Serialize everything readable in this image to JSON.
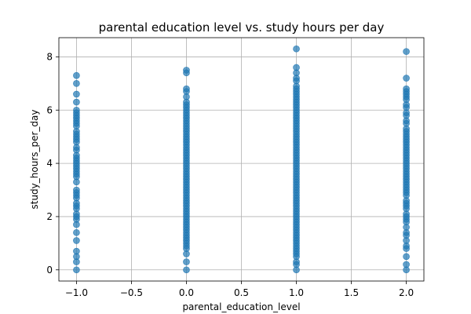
{
  "chart_data": {
    "type": "scatter",
    "title": "parental education level vs. study hours per day",
    "xlabel": "parental_education_level",
    "ylabel": "study_hours_per_day",
    "xlim": [
      -1.16,
      2.16
    ],
    "ylim": [
      -0.42,
      8.72
    ],
    "x_ticks": [
      -1.0,
      -0.5,
      0.0,
      0.5,
      1.0,
      1.5,
      2.0
    ],
    "x_tick_labels": [
      "−1.0",
      "−0.5",
      "0.0",
      "0.5",
      "1.0",
      "1.5",
      "2.0"
    ],
    "y_ticks": [
      0,
      2,
      4,
      6,
      8
    ],
    "y_tick_labels": [
      "0",
      "2",
      "4",
      "6",
      "8"
    ],
    "grid": true,
    "marker_color": "#1f77b4",
    "marker_alpha": 0.7,
    "series": [
      {
        "x": -1.0,
        "y": [
          0.0,
          0.3,
          0.5,
          0.7,
          1.1,
          1.4,
          1.7,
          1.9,
          2.0,
          2.1,
          2.3,
          2.4,
          2.5,
          2.7,
          2.8,
          2.9,
          3.0,
          3.3,
          3.5,
          3.6,
          3.7,
          3.8,
          3.9,
          4.0,
          4.1,
          4.2,
          4.3,
          4.5,
          4.6,
          4.8,
          4.9,
          5.0,
          5.1,
          5.2,
          5.4,
          5.5,
          5.6,
          5.7,
          5.8,
          5.9,
          6.0,
          6.3,
          6.6,
          7.0,
          7.3
        ]
      },
      {
        "x": 0.0,
        "y": [
          0.0,
          0.3,
          0.6,
          0.8,
          0.9,
          1.0,
          1.1,
          1.2,
          1.3,
          1.4,
          1.5,
          1.6,
          1.7,
          1.8,
          1.9,
          2.0,
          2.1,
          2.2,
          2.3,
          2.4,
          2.5,
          2.6,
          2.7,
          2.8,
          2.9,
          3.0,
          3.1,
          3.2,
          3.3,
          3.4,
          3.5,
          3.6,
          3.7,
          3.8,
          3.9,
          4.0,
          4.1,
          4.2,
          4.3,
          4.4,
          4.5,
          4.6,
          4.7,
          4.8,
          4.9,
          5.0,
          5.1,
          5.2,
          5.3,
          5.4,
          5.5,
          5.6,
          5.7,
          5.8,
          5.9,
          6.0,
          6.1,
          6.2,
          6.3,
          6.5,
          6.7,
          6.8,
          7.4,
          7.5
        ]
      },
      {
        "x": 1.0,
        "y": [
          0.0,
          0.2,
          0.3,
          0.5,
          0.6,
          0.7,
          0.8,
          0.9,
          1.0,
          1.1,
          1.2,
          1.3,
          1.4,
          1.5,
          1.6,
          1.7,
          1.8,
          1.9,
          2.0,
          2.1,
          2.2,
          2.3,
          2.4,
          2.5,
          2.6,
          2.7,
          2.8,
          2.9,
          3.0,
          3.1,
          3.2,
          3.3,
          3.4,
          3.5,
          3.6,
          3.7,
          3.8,
          3.9,
          4.0,
          4.1,
          4.2,
          4.3,
          4.4,
          4.5,
          4.6,
          4.7,
          4.8,
          4.9,
          5.0,
          5.1,
          5.2,
          5.3,
          5.4,
          5.5,
          5.6,
          5.7,
          5.8,
          5.9,
          6.0,
          6.1,
          6.2,
          6.3,
          6.4,
          6.5,
          6.6,
          6.7,
          6.8,
          6.9,
          7.1,
          7.2,
          7.4,
          7.6,
          8.3
        ]
      },
      {
        "x": 2.0,
        "y": [
          0.0,
          0.2,
          0.5,
          0.8,
          0.9,
          1.1,
          1.3,
          1.4,
          1.6,
          1.8,
          1.9,
          2.0,
          2.1,
          2.3,
          2.4,
          2.5,
          2.6,
          2.8,
          2.9,
          3.0,
          3.1,
          3.2,
          3.3,
          3.4,
          3.5,
          3.6,
          3.7,
          3.8,
          3.9,
          4.0,
          4.1,
          4.2,
          4.3,
          4.4,
          4.5,
          4.6,
          4.7,
          4.8,
          4.9,
          5.0,
          5.1,
          5.2,
          5.3,
          5.5,
          5.6,
          5.8,
          5.9,
          6.1,
          6.2,
          6.4,
          6.5,
          6.6,
          6.7,
          6.8,
          7.2,
          8.2
        ]
      }
    ]
  }
}
